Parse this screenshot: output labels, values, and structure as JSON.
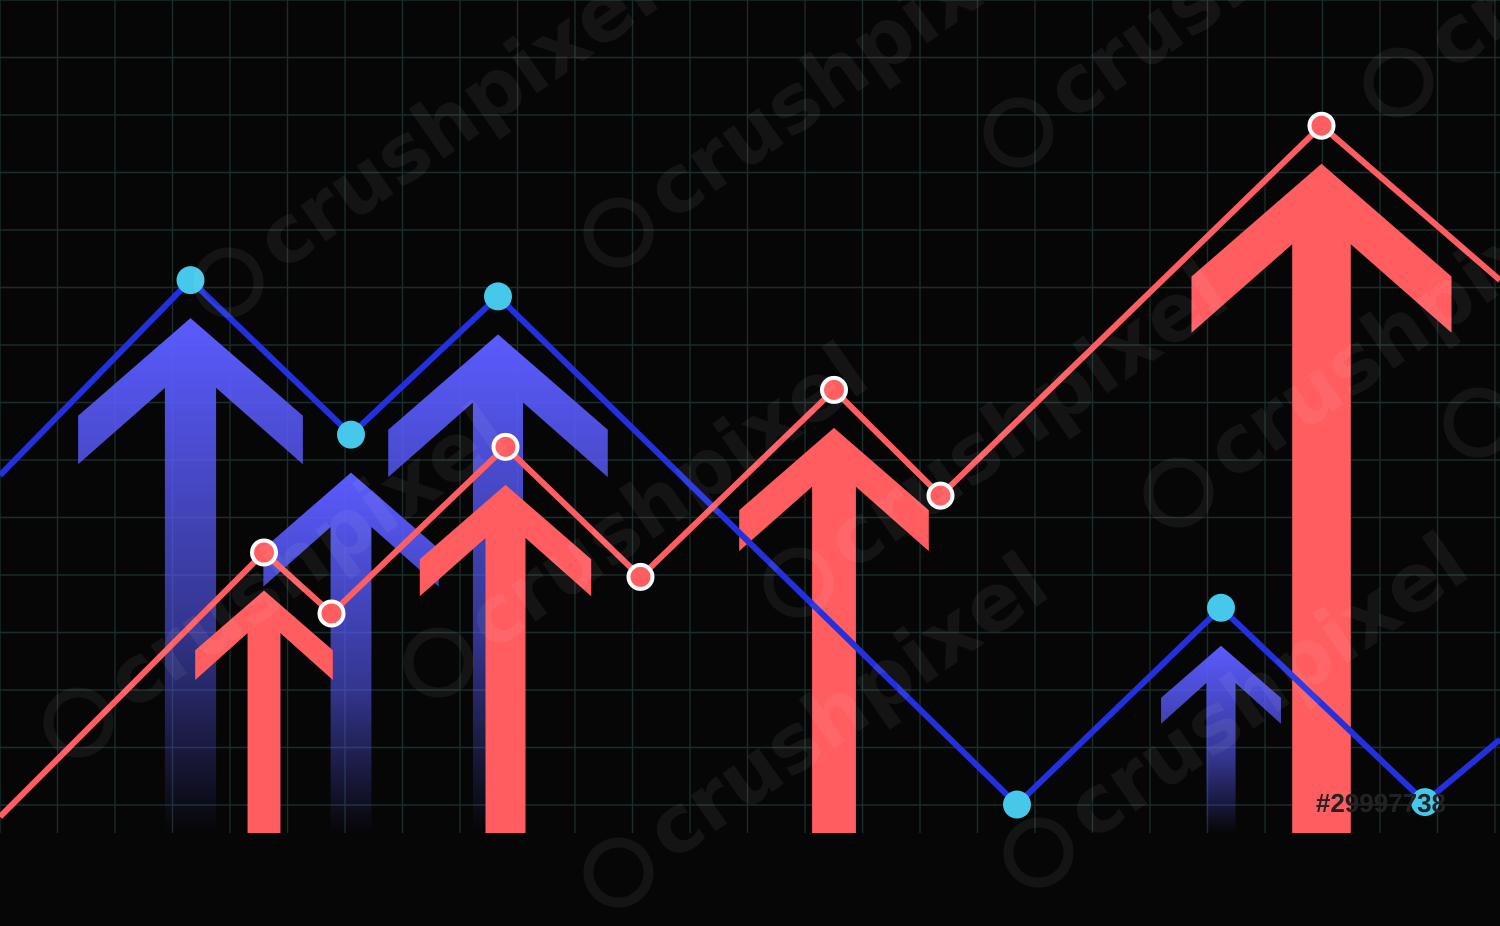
{
  "chart_data": {
    "type": "line",
    "title": "",
    "xlabel": "",
    "ylabel": "",
    "grid": true,
    "legend": "none",
    "xlim": [
      0,
      100
    ],
    "ylim": [
      0,
      100
    ],
    "series": [
      {
        "color": "#2230e0",
        "marker_color": "#45c8ea",
        "arrow_color": "#5a5cff",
        "points": [
          [
            0,
            44
          ],
          [
            12.7,
            68
          ],
          [
            23.4,
            49
          ],
          [
            33.2,
            66
          ],
          [
            67.8,
            3.5
          ],
          [
            81.4,
            27.7
          ],
          [
            95,
            3.8
          ],
          [
            100,
            11.5
          ]
        ],
        "marker_indices": [
          1,
          2,
          3,
          4,
          5,
          6
        ],
        "arrows_at": [
          1,
          2,
          3,
          5
        ]
      },
      {
        "color": "#ff5d60",
        "marker_color": "#ff5d60",
        "arrow_color": "#ff5d60",
        "points": [
          [
            0,
            2
          ],
          [
            17.6,
            34.5
          ],
          [
            22.1,
            27
          ],
          [
            33.7,
            47.5
          ],
          [
            42.7,
            31.5
          ],
          [
            55.6,
            54.5
          ],
          [
            62.7,
            41.5
          ],
          [
            88.1,
            87
          ],
          [
            100,
            68
          ]
        ],
        "marker_indices": [
          1,
          2,
          3,
          4,
          5,
          6,
          7
        ],
        "arrows_at": [
          1,
          3,
          5,
          7
        ]
      }
    ]
  },
  "watermark": {
    "text": "crushpixel",
    "image_id": "#29997738"
  }
}
